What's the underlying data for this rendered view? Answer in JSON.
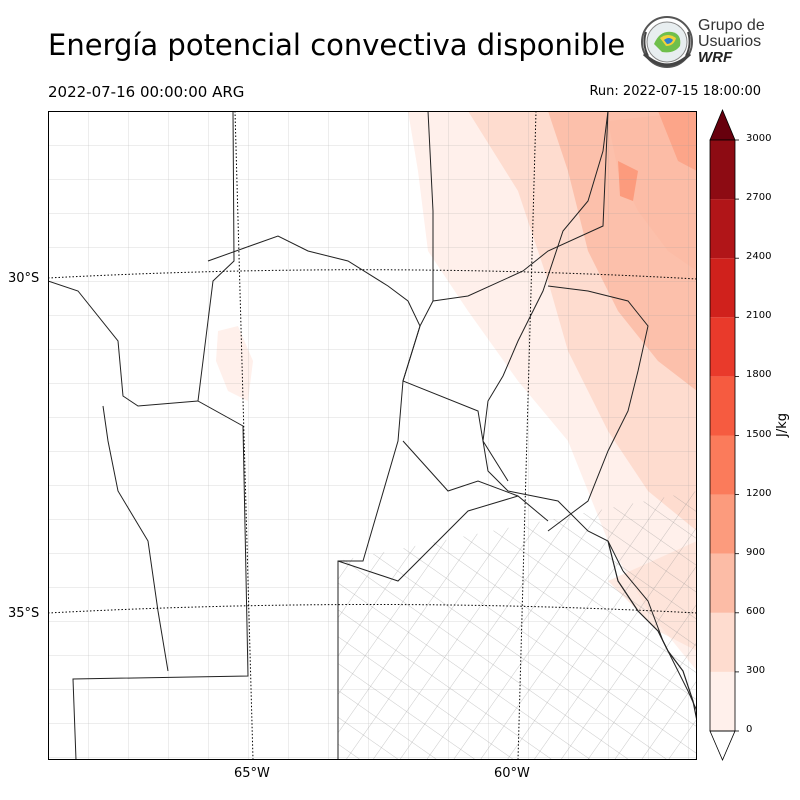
{
  "header": {
    "title": "Energía potencial convectiva disponible",
    "valid_time": "2022-07-16 00:00:00 ARG",
    "run_time": "Run: 2022-07-15 18:00:00"
  },
  "logo": {
    "line1": "Grupo de",
    "line2": "Usuarios",
    "line3": "WRF"
  },
  "axes": {
    "lat_labels": [
      "30°S",
      "35°S"
    ],
    "lon_labels": [
      "65°W",
      "60°W"
    ]
  },
  "colorbar": {
    "unit": "J/kg",
    "ticks": [
      "0",
      "300",
      "600",
      "900",
      "1200",
      "1500",
      "1800",
      "2100",
      "2400",
      "2700",
      "3000"
    ],
    "colors": [
      "#fff0eb",
      "#fedccf",
      "#fcbca6",
      "#fc9b7d",
      "#fb7b5b",
      "#f65b40",
      "#e93a2b",
      "#d0211c",
      "#b11518",
      "#8d0b13",
      "#67000d"
    ]
  },
  "chart_data": {
    "type": "heatmap",
    "variable": "CAPE",
    "unit": "J/kg",
    "range": [
      0,
      3000
    ],
    "lon_range": [
      -68.5,
      -56.5
    ],
    "lat_range": [
      -38.5,
      -27
    ]
  }
}
